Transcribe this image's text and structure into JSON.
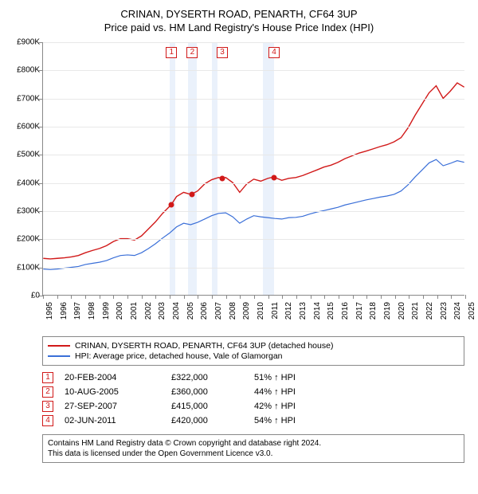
{
  "title": {
    "line1": "CRINAN, DYSERTH ROAD, PENARTH, CF64 3UP",
    "line2": "Price paid vs. HM Land Registry's House Price Index (HPI)",
    "fontsize": 13
  },
  "chart": {
    "type": "line",
    "xlim": [
      1995,
      2025
    ],
    "ylim": [
      0,
      900000
    ],
    "ytick_step": 100000,
    "y_labels": [
      "£0",
      "£100K",
      "£200K",
      "£300K",
      "£400K",
      "£500K",
      "£600K",
      "£700K",
      "£800K",
      "£900K"
    ],
    "x_labels": [
      "1995",
      "1996",
      "1997",
      "1998",
      "1999",
      "2000",
      "2001",
      "2002",
      "2003",
      "2004",
      "2005",
      "2006",
      "2007",
      "2008",
      "2009",
      "2010",
      "2011",
      "2012",
      "2013",
      "2014",
      "2015",
      "2016",
      "2017",
      "2018",
      "2019",
      "2020",
      "2021",
      "2022",
      "2023",
      "2024",
      "2025"
    ],
    "background_color": "#ffffff",
    "grid_color": "#e8e8e8",
    "shade_color": "#eaf1fb",
    "series": {
      "property": {
        "label": "CRINAN, DYSERTH ROAD, PENARTH, CF64 3UP (detached house)",
        "color": "#d11919",
        "line_width": 1.4,
        "data": [
          [
            1995.0,
            130000
          ],
          [
            1995.5,
            128000
          ],
          [
            1996.0,
            130000
          ],
          [
            1996.5,
            132000
          ],
          [
            1997.0,
            135000
          ],
          [
            1997.5,
            140000
          ],
          [
            1998.0,
            150000
          ],
          [
            1998.5,
            158000
          ],
          [
            1999.0,
            165000
          ],
          [
            1999.5,
            175000
          ],
          [
            2000.0,
            190000
          ],
          [
            2000.5,
            200000
          ],
          [
            2001.0,
            200000
          ],
          [
            2001.5,
            195000
          ],
          [
            2002.0,
            210000
          ],
          [
            2002.5,
            235000
          ],
          [
            2003.0,
            260000
          ],
          [
            2003.5,
            290000
          ],
          [
            2004.0,
            315000
          ],
          [
            2004.13,
            322000
          ],
          [
            2004.5,
            350000
          ],
          [
            2005.0,
            365000
          ],
          [
            2005.5,
            358000
          ],
          [
            2005.61,
            360000
          ],
          [
            2006.0,
            370000
          ],
          [
            2006.5,
            395000
          ],
          [
            2007.0,
            410000
          ],
          [
            2007.5,
            418000
          ],
          [
            2007.74,
            415000
          ],
          [
            2008.0,
            418000
          ],
          [
            2008.5,
            400000
          ],
          [
            2009.0,
            365000
          ],
          [
            2009.5,
            395000
          ],
          [
            2010.0,
            412000
          ],
          [
            2010.5,
            405000
          ],
          [
            2011.0,
            415000
          ],
          [
            2011.42,
            420000
          ],
          [
            2011.5,
            418000
          ],
          [
            2012.0,
            408000
          ],
          [
            2012.5,
            415000
          ],
          [
            2013.0,
            418000
          ],
          [
            2013.5,
            425000
          ],
          [
            2014.0,
            435000
          ],
          [
            2014.5,
            445000
          ],
          [
            2015.0,
            455000
          ],
          [
            2015.5,
            462000
          ],
          [
            2016.0,
            472000
          ],
          [
            2016.5,
            485000
          ],
          [
            2017.0,
            495000
          ],
          [
            2017.5,
            505000
          ],
          [
            2018.0,
            512000
          ],
          [
            2018.5,
            520000
          ],
          [
            2019.0,
            528000
          ],
          [
            2019.5,
            535000
          ],
          [
            2020.0,
            545000
          ],
          [
            2020.5,
            560000
          ],
          [
            2021.0,
            595000
          ],
          [
            2021.5,
            640000
          ],
          [
            2022.0,
            680000
          ],
          [
            2022.5,
            720000
          ],
          [
            2023.0,
            745000
          ],
          [
            2023.5,
            700000
          ],
          [
            2024.0,
            725000
          ],
          [
            2024.5,
            755000
          ],
          [
            2025.0,
            740000
          ]
        ]
      },
      "hpi": {
        "label": "HPI: Average price, detached house, Vale of Glamorgan",
        "color": "#3a6fd8",
        "line_width": 1.2,
        "data": [
          [
            1995.0,
            92000
          ],
          [
            1995.5,
            90000
          ],
          [
            1996.0,
            92000
          ],
          [
            1996.5,
            95000
          ],
          [
            1997.0,
            98000
          ],
          [
            1997.5,
            101000
          ],
          [
            1998.0,
            108000
          ],
          [
            1998.5,
            112000
          ],
          [
            1999.0,
            116000
          ],
          [
            1999.5,
            122000
          ],
          [
            2000.0,
            132000
          ],
          [
            2000.5,
            140000
          ],
          [
            2001.0,
            142000
          ],
          [
            2001.5,
            140000
          ],
          [
            2002.0,
            150000
          ],
          [
            2002.5,
            165000
          ],
          [
            2003.0,
            182000
          ],
          [
            2003.5,
            202000
          ],
          [
            2004.0,
            220000
          ],
          [
            2004.5,
            242000
          ],
          [
            2005.0,
            255000
          ],
          [
            2005.5,
            250000
          ],
          [
            2006.0,
            258000
          ],
          [
            2006.5,
            270000
          ],
          [
            2007.0,
            282000
          ],
          [
            2007.5,
            290000
          ],
          [
            2008.0,
            292000
          ],
          [
            2008.5,
            278000
          ],
          [
            2009.0,
            255000
          ],
          [
            2009.5,
            270000
          ],
          [
            2010.0,
            282000
          ],
          [
            2010.5,
            278000
          ],
          [
            2011.0,
            275000
          ],
          [
            2011.5,
            272000
          ],
          [
            2012.0,
            270000
          ],
          [
            2012.5,
            275000
          ],
          [
            2013.0,
            276000
          ],
          [
            2013.5,
            280000
          ],
          [
            2014.0,
            288000
          ],
          [
            2014.5,
            295000
          ],
          [
            2015.0,
            300000
          ],
          [
            2015.5,
            306000
          ],
          [
            2016.0,
            312000
          ],
          [
            2016.5,
            320000
          ],
          [
            2017.0,
            326000
          ],
          [
            2017.5,
            332000
          ],
          [
            2018.0,
            338000
          ],
          [
            2018.5,
            343000
          ],
          [
            2019.0,
            348000
          ],
          [
            2019.5,
            352000
          ],
          [
            2020.0,
            358000
          ],
          [
            2020.5,
            370000
          ],
          [
            2021.0,
            392000
          ],
          [
            2021.5,
            420000
          ],
          [
            2022.0,
            445000
          ],
          [
            2022.5,
            470000
          ],
          [
            2023.0,
            482000
          ],
          [
            2023.5,
            460000
          ],
          [
            2024.0,
            468000
          ],
          [
            2024.5,
            478000
          ],
          [
            2025.0,
            472000
          ]
        ]
      }
    },
    "sale_markers": [
      {
        "n": 1,
        "x": 2004.13,
        "y": 322000,
        "band_start": 2004.0,
        "band_end": 2004.4
      },
      {
        "n": 2,
        "x": 2005.61,
        "y": 360000,
        "band_start": 2005.3,
        "band_end": 2005.9
      },
      {
        "n": 3,
        "x": 2007.74,
        "y": 415000,
        "band_start": 2007.0,
        "band_end": 2007.4
      },
      {
        "n": 4,
        "x": 2011.42,
        "y": 420000,
        "band_start": 2010.6,
        "band_end": 2011.4
      }
    ]
  },
  "legend": {
    "items": [
      "property",
      "hpi"
    ]
  },
  "sales_table": [
    {
      "n": "1",
      "date": "20-FEB-2004",
      "price": "£322,000",
      "delta": "51% ↑ HPI"
    },
    {
      "n": "2",
      "date": "10-AUG-2005",
      "price": "£360,000",
      "delta": "44% ↑ HPI"
    },
    {
      "n": "3",
      "date": "27-SEP-2007",
      "price": "£415,000",
      "delta": "42% ↑ HPI"
    },
    {
      "n": "4",
      "date": "02-JUN-2011",
      "price": "£420,000",
      "delta": "54% ↑ HPI"
    }
  ],
  "footnote": {
    "line1": "Contains HM Land Registry data © Crown copyright and database right 2024.",
    "line2": "This data is licensed under the Open Government Licence v3.0."
  }
}
